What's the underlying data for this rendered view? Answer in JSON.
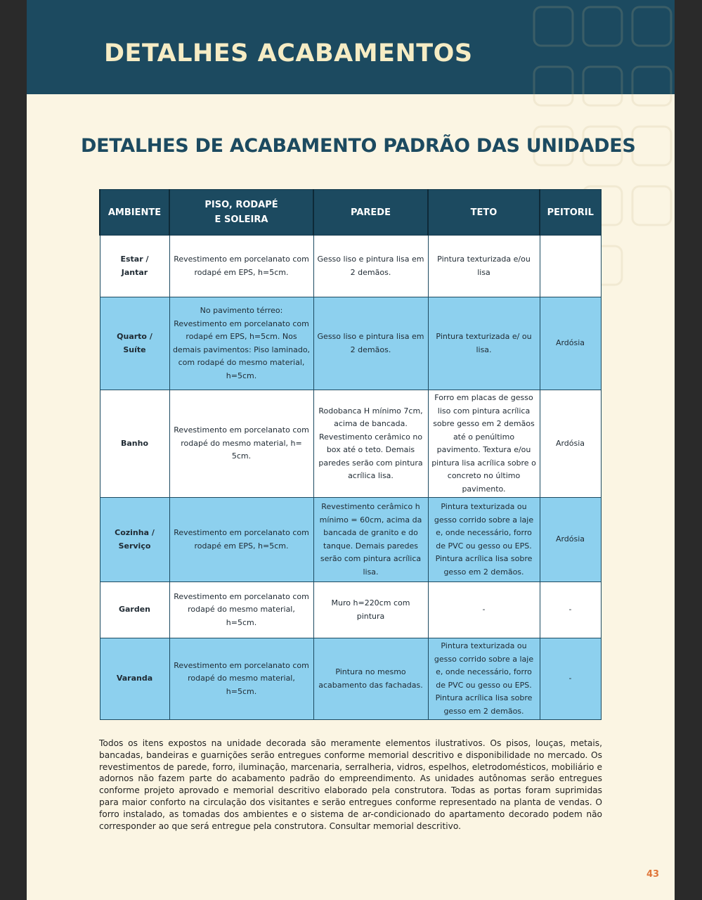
{
  "header": {
    "title": "DETALHES ACABAMENTOS"
  },
  "section": {
    "title": "DETALHES DE ACABAMENTO PADRÃO DAS UNIDADES"
  },
  "table": {
    "columns": [
      "AMBIENTE",
      "PISO, RODAPÉ\nE SOLEIRA",
      "PAREDE",
      "TETO",
      "PEITORIL"
    ],
    "rows": [
      [
        "Estar /\nJantar",
        "Revestimento em porcelanato com rodapé em EPS, h=5cm.",
        "Gesso liso e pintura lisa em 2 demãos.",
        "Pintura texturizada e/ou lisa",
        ""
      ],
      [
        "Quarto /\nSuíte",
        "No pavimento térreo: Revestimento em porcelanato com rodapé em EPS, h=5cm. Nos demais pavimentos: Piso laminado, com rodapé do mesmo material, h=5cm.",
        "Gesso liso e pintura lisa em 2 demãos.",
        "Pintura texturizada e/ ou lisa.",
        "Ardósia"
      ],
      [
        "Banho",
        "Revestimento em porcelanato com rodapé do mesmo material, h= 5cm.",
        "Rodobanca H mínimo 7cm, acima de bancada. Revestimento cerâmico no box até o teto. Demais paredes serão com pintura acrílica lisa.",
        "Forro em placas de gesso liso com pintura acrílica sobre gesso em 2 demãos até o penúltimo pavimento. Textura e/ou pintura lisa acrílica sobre o concreto no último pavimento.",
        "Ardósia"
      ],
      [
        "Cozinha /\nServiço",
        "Revestimento em porcelanato com rodapé em EPS, h=5cm.",
        "Revestimento cerâmico h mínimo = 60cm, acima da bancada de granito e do tanque. Demais paredes serão com pintura acrílica lisa.",
        "Pintura texturizada ou gesso corrido sobre a laje e, onde necessário, forro de PVC ou gesso ou EPS. Pintura acrílica lisa sobre gesso em 2 demãos.",
        "Ardósia"
      ],
      [
        "Garden",
        "Revestimento em porcelanato com rodapé do mesmo material, h=5cm.",
        "Muro h=220cm com pintura",
        "-",
        "-"
      ],
      [
        "Varanda",
        "Revestimento em porcelanato com rodapé do mesmo material, h=5cm.",
        "Pintura no mesmo acabamento das fachadas.",
        "Pintura texturizada ou gesso corrido sobre a laje e, onde necessário, forro de PVC ou gesso ou EPS. Pintura acrílica lisa sobre gesso em 2 demãos.",
        "-"
      ]
    ]
  },
  "note": "Todos os itens expostos na unidade decorada são meramente elementos ilustrativos. Os pisos, louças, metais, bancadas, bandeiras e guarnições serão entregues conforme memorial descritivo e disponibilidade no mercado. Os revestimentos de parede, forro, iluminação, marcenaria, serralheria, vidros, espelhos, eletrodomésticos, mobiliário e adornos não fazem parte do acabamento padrão do empreendimento. As unidades autônomas serão entregues conforme projeto aprovado e memorial descritivo elaborado pela construtora. Todas as portas foram suprimidas para maior conforto na circulação dos visitantes e serão entregues conforme representado na planta de vendas. O forro instalado, as tomadas dos ambientes e o sistema de ar-condicionado do apartamento decorado podem não corresponder ao que será entregue pela construtora. Consultar memorial descritivo.",
  "page_number": "43",
  "colors": {
    "header_band": "#1c4a60",
    "title_text": "#f6ecc4",
    "background": "#fbf5e3",
    "row_alt": "#8dd0ee",
    "page_number": "#e0763a"
  }
}
